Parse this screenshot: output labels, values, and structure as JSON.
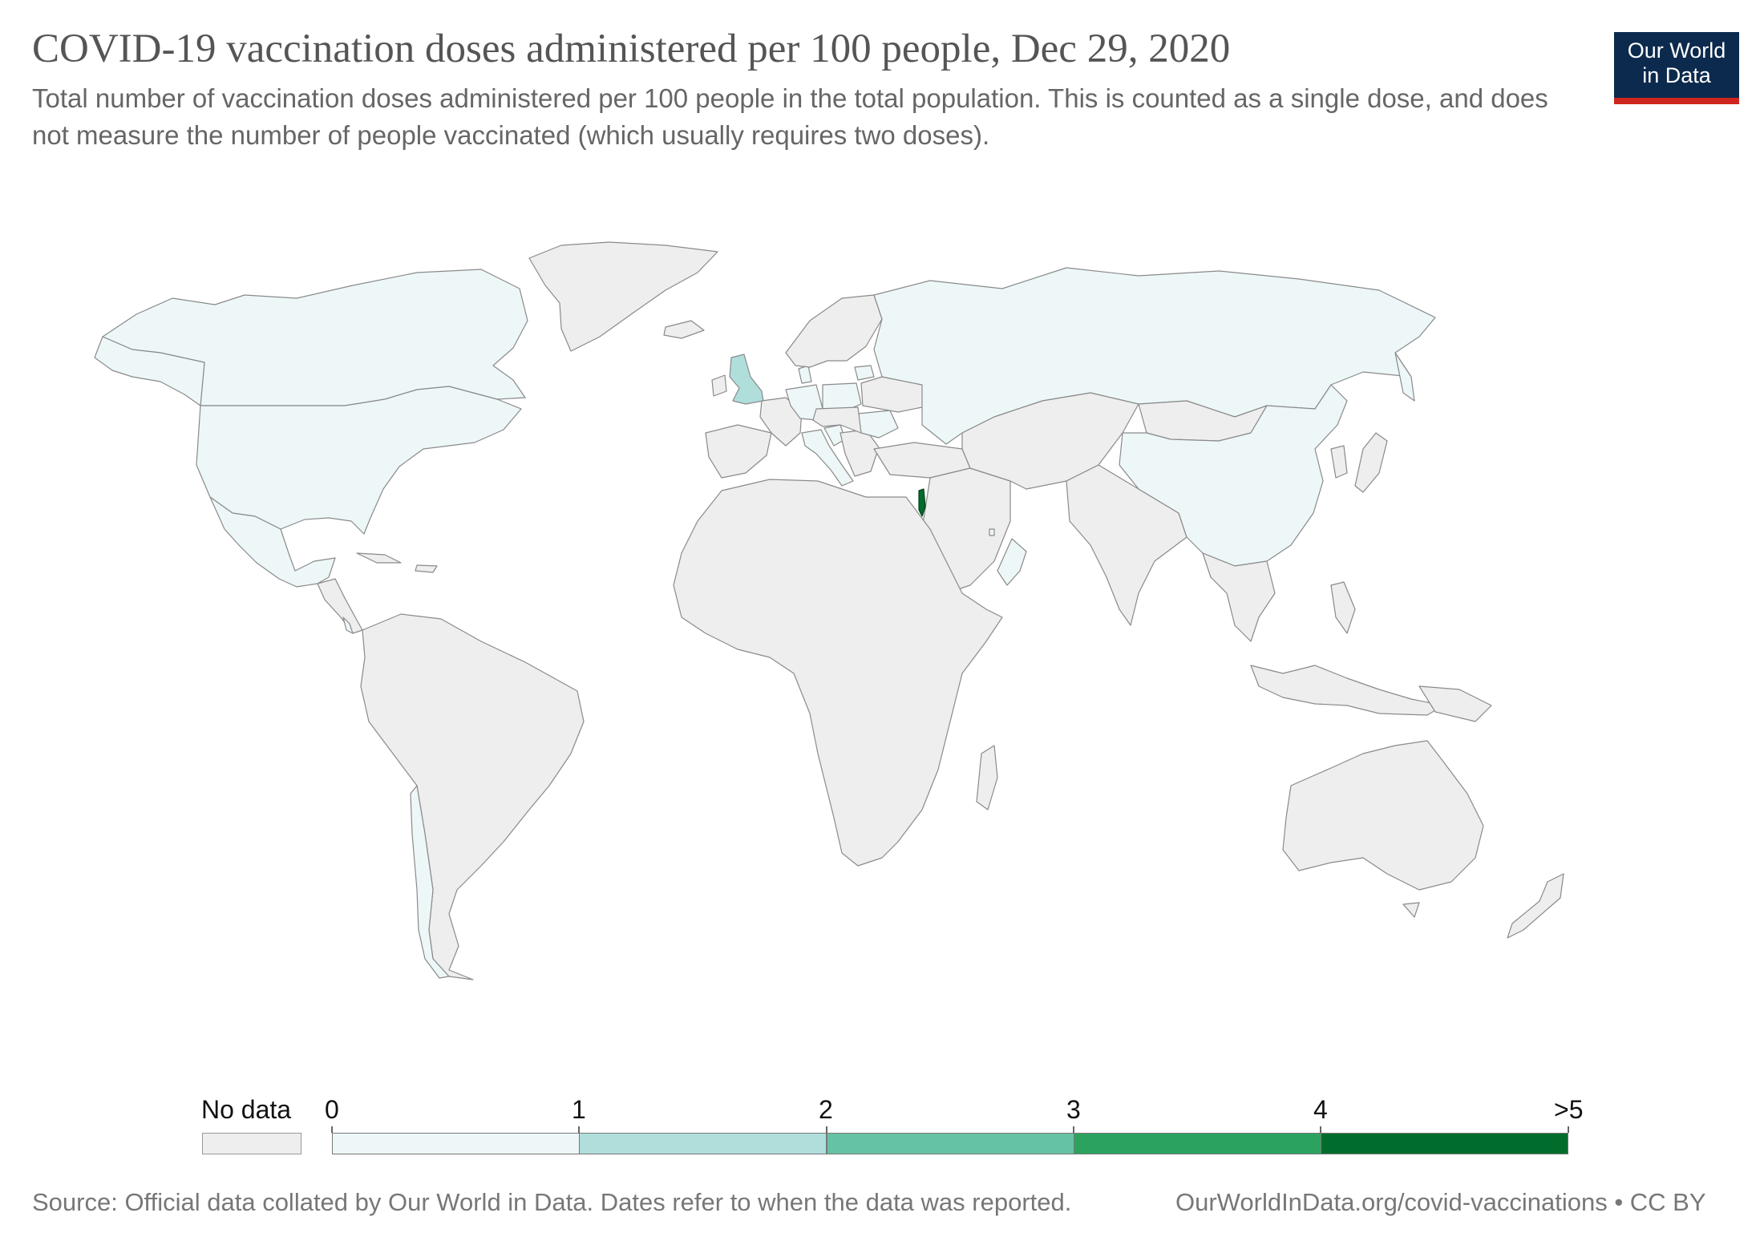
{
  "header": {
    "title": "COVID-19 vaccination doses administered per 100 people, Dec 29, 2020",
    "subtitle": "Total number of vaccination doses administered per 100 people in the total population. This is counted as a single dose, and does not measure the number of people vaccinated (which usually requires two doses)."
  },
  "logo": {
    "line1": "Our World",
    "line2": "in Data"
  },
  "legend": {
    "no_data_label": "No data",
    "ticks": [
      "0",
      "1",
      "2",
      "3",
      "4",
      ">5"
    ],
    "bins": [
      {
        "range": "0–1",
        "color": "#edf7f8"
      },
      {
        "range": "1–2",
        "color": "#afdedb"
      },
      {
        "range": "2–3",
        "color": "#66c2a4"
      },
      {
        "range": "3–4",
        "color": "#2ca25f"
      },
      {
        "range": "4–>5",
        "color": "#006d2c"
      }
    ],
    "no_data_color": "#eeeeee"
  },
  "chart_data": {
    "type": "choropleth",
    "metric": "vaccination doses administered per 100 people",
    "date": "Dec 29, 2020",
    "scale": {
      "breaks": [
        0,
        1,
        2,
        3,
        4,
        5
      ]
    },
    "regions": [
      {
        "name": "United States",
        "bin": "0–1"
      },
      {
        "name": "Canada",
        "bin": "0–1"
      },
      {
        "name": "Mexico",
        "bin": "0–1"
      },
      {
        "name": "Costa Rica",
        "bin": "0–1"
      },
      {
        "name": "Chile",
        "bin": "0–1"
      },
      {
        "name": "Russia",
        "bin": "0–1"
      },
      {
        "name": "China",
        "bin": "0–1"
      },
      {
        "name": "United Kingdom",
        "bin": "1–2"
      },
      {
        "name": "Israel",
        "bin": "4–>5"
      },
      {
        "name": "Bahrain",
        "bin": "0–1"
      },
      {
        "name": "Oman",
        "bin": "0–1"
      },
      {
        "name": "Germany",
        "bin": "0–1"
      },
      {
        "name": "Poland",
        "bin": "0–1"
      },
      {
        "name": "Italy",
        "bin": "0–1"
      },
      {
        "name": "Denmark",
        "bin": "0–1"
      },
      {
        "name": "Romania",
        "bin": "0–1"
      },
      {
        "name": "Croatia",
        "bin": "0–1"
      },
      {
        "name": "Lithuania",
        "bin": "0–1"
      },
      {
        "name": "Kuwait",
        "bin": "0–1"
      }
    ]
  },
  "footer": {
    "source": "Source: Official data collated by Our World in Data. Dates refer to when the data was reported.",
    "link": "OurWorldInData.org/covid-vaccinations • CC BY"
  }
}
